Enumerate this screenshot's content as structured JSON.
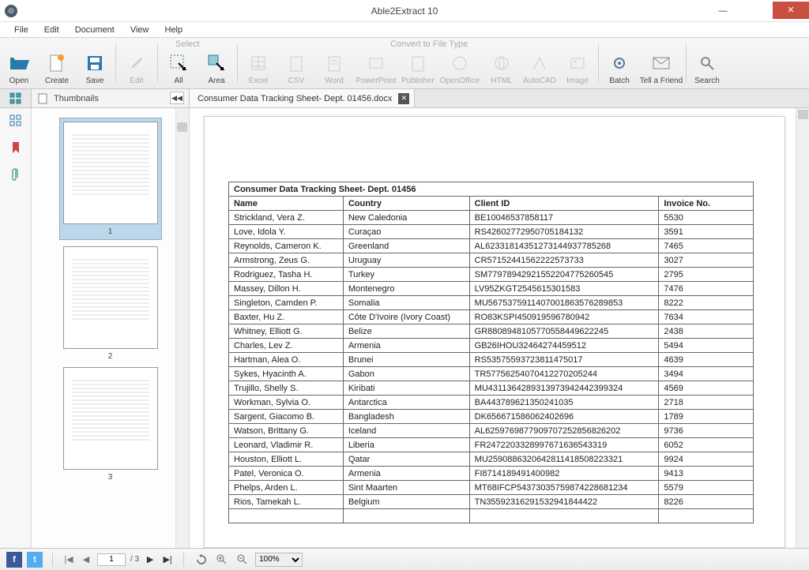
{
  "app": {
    "title": "Able2Extract 10"
  },
  "menu": [
    "File",
    "Edit",
    "Document",
    "View",
    "Help"
  ],
  "toolbar_sections": {
    "select": "Select",
    "convert": "Convert to File Type"
  },
  "toolbar": {
    "open": "Open",
    "create": "Create",
    "save": "Save",
    "edit": "Edit",
    "all": "All",
    "area": "Area",
    "excel": "Excel",
    "csv": "CSV",
    "word": "Word",
    "powerpoint": "PowerPoint",
    "publisher": "Publisher",
    "openoffice": "OpenOffice",
    "html": "HTML",
    "autocad": "AutoCAD",
    "image": "Image",
    "batch": "Batch",
    "tell": "Tell a Friend",
    "search": "Search"
  },
  "sidepanel": {
    "thumbnails_label": "Thumbnails"
  },
  "document": {
    "tab_title": "Consumer Data Tracking Sheet- Dept. 01456.docx"
  },
  "pages": {
    "current": "1",
    "total": "3"
  },
  "zoom": {
    "value": "100%"
  },
  "table": {
    "title": "Consumer Data Tracking Sheet- Dept. 01456",
    "columns": [
      "Name",
      "Country",
      "Client ID",
      "Invoice  No."
    ],
    "rows": [
      [
        "Strickland, Vera Z.",
        "New Caledonia",
        "BE10046537858117",
        "5530"
      ],
      [
        "Love, Idola Y.",
        "Curaçao",
        "RS42602772950705184132",
        "3591"
      ],
      [
        "Reynolds, Cameron K.",
        "Greenland",
        "AL62331814351273144937785268",
        "7465"
      ],
      [
        "Armstrong, Zeus G.",
        "Uruguay",
        "CR57152441562222573733",
        "3027"
      ],
      [
        "Rodriguez, Tasha H.",
        "Turkey",
        "SM77978942921552204775260545",
        "2795"
      ],
      [
        "Massey, Dillon H.",
        "Montenegro",
        "LV95ZKGT2545615301583",
        "7476"
      ],
      [
        "Singleton, Camden P.",
        "Somalia",
        "MU5675375911407001863576289853",
        "8222"
      ],
      [
        "Baxter, Hu Z.",
        "Côte D'Ivoire (Ivory Coast)",
        "RO83KSPI450919596780942",
        "7634"
      ],
      [
        "Whitney, Elliott G.",
        "Belize",
        "GR8808948105770558449622245",
        "2438"
      ],
      [
        "Charles, Lev Z.",
        "Armenia",
        "GB26IHOU32464274459512",
        "5494"
      ],
      [
        "Hartman, Alea O.",
        "Brunei",
        "RS53575593723811475017",
        "4639"
      ],
      [
        "Sykes, Hyacinth A.",
        "Gabon",
        "TR57756254070412270205244",
        "3494"
      ],
      [
        "Trujillo, Shelly S.",
        "Kiribati",
        "MU4311364289313973942442399324",
        "4569"
      ],
      [
        "Workman, Sylvia O.",
        "Antarctica",
        "BA443789621350241035",
        "2718"
      ],
      [
        "Sargent, Giacomo B.",
        "Bangladesh",
        "DK656671586062402696",
        "1789"
      ],
      [
        "Watson, Brittany G.",
        "Iceland",
        "AL6259769877909707252856826202",
        "9736"
      ],
      [
        "Leonard, Vladimir R.",
        "Liberia",
        "FR2472203328997671636543319",
        "6052"
      ],
      [
        "Houston, Elliott L.",
        "Qatar",
        "MU2590886320642811418508223321",
        "9924"
      ],
      [
        "Patel, Veronica O.",
        "Armenia",
        "FI8714189491400982",
        "9413"
      ],
      [
        "Phelps, Arden L.",
        "Sint Maarten",
        "MT68IFCP54373035759874228681234",
        "5579"
      ],
      [
        "Rios, Tamekah L.",
        "Belgium",
        "TN35592316291532941844422",
        "8226"
      ],
      [
        "",
        "",
        "",
        ""
      ]
    ]
  },
  "colors": {
    "close_btn": "#c94f41",
    "thumb_selected_bg": "#bcd6ea",
    "open_icon": "#2a7ab0",
    "create_icon": "#f0a030",
    "save_icon": "#2a7ab0"
  }
}
